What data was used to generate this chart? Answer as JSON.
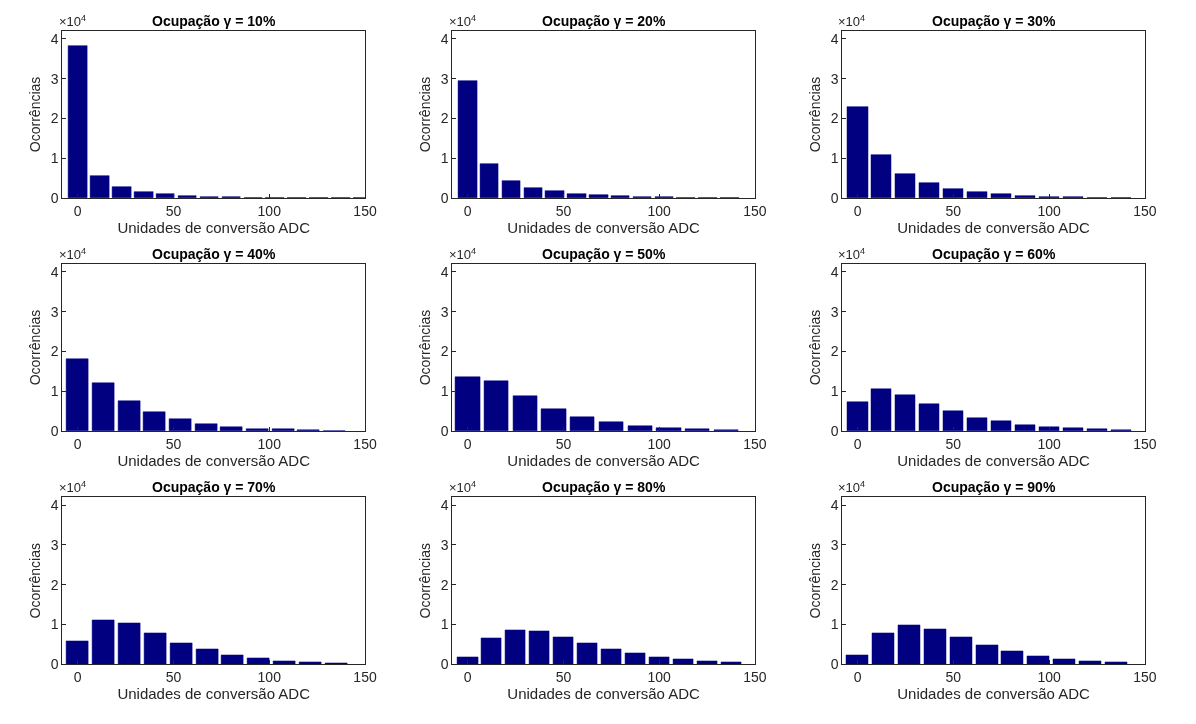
{
  "chart_data": [
    {
      "type": "bar",
      "title": "Ocupação γ = 10%",
      "xlabel": "Unidades de conversão ADC",
      "ylabel": "Ocorrências",
      "annotations": [
        "×10$^{4}$"
      ],
      "x": [
        0,
        11.5,
        23,
        34.4,
        45.8,
        57.3,
        68.7,
        80.2,
        91.6,
        103,
        114.5,
        126,
        137.4,
        148.9
      ],
      "values": [
        3.82,
        0.55,
        0.27,
        0.15,
        0.09,
        0.06,
        0.03,
        0.02,
        0.01,
        0.01,
        0.01,
        0.01,
        0.01,
        0.01
      ],
      "color": "#000080",
      "xlim": [
        -8,
        150
      ],
      "xticks": [
        0,
        50,
        100,
        150
      ],
      "ylim": [
        0,
        4.2
      ],
      "yticks": [
        0,
        1,
        2,
        3,
        4
      ]
    },
    {
      "type": "bar",
      "title": "Ocupação γ = 20%",
      "xlabel": "Unidades de conversão ADC",
      "ylabel": "Ocorrências",
      "annotations": [
        "×10$^{4}$"
      ],
      "x": [
        0,
        11.4,
        22.8,
        34.2,
        45.6,
        57,
        68.4,
        79.8,
        91.2,
        102.6,
        114,
        125.4,
        136.8
      ],
      "values": [
        2.95,
        0.85,
        0.43,
        0.26,
        0.17,
        0.11,
        0.07,
        0.05,
        0.03,
        0.02,
        0.01,
        0.01,
        0.01
      ],
      "color": "#000080",
      "xlim": [
        -8,
        150
      ],
      "xticks": [
        0,
        50,
        100,
        150
      ],
      "ylim": [
        0,
        4.2
      ],
      "yticks": [
        0,
        1,
        2,
        3,
        4
      ]
    },
    {
      "type": "bar",
      "title": "Ocupação γ = 30%",
      "xlabel": "Unidades de conversão ADC",
      "ylabel": "Ocorrências",
      "annotations": [
        "×10$^{4}$"
      ],
      "x": [
        0,
        12.5,
        25,
        37.5,
        50,
        62.5,
        75,
        87.5,
        100,
        112.5,
        125,
        137.5
      ],
      "values": [
        2.3,
        1.08,
        0.61,
        0.37,
        0.22,
        0.15,
        0.09,
        0.06,
        0.03,
        0.02,
        0.01,
        0.01
      ],
      "color": "#000080",
      "xlim": [
        -8,
        150
      ],
      "xticks": [
        0,
        50,
        100,
        150
      ],
      "ylim": [
        0,
        4.2
      ],
      "yticks": [
        0,
        1,
        2,
        3,
        4
      ]
    },
    {
      "type": "bar",
      "title": "Ocupação γ = 40%",
      "xlabel": "Unidades de conversão ADC",
      "ylabel": "Ocorrências",
      "annotations": [
        "×10$^{4}$"
      ],
      "x": [
        0,
        13.4,
        26.8,
        40.2,
        53.6,
        67,
        80.4,
        93.8,
        107.2,
        120.6,
        134
      ],
      "values": [
        1.8,
        1.2,
        0.75,
        0.47,
        0.3,
        0.18,
        0.1,
        0.06,
        0.04,
        0.02,
        0.01
      ],
      "color": "#000080",
      "xlim": [
        -8,
        150
      ],
      "xticks": [
        0,
        50,
        100,
        150
      ],
      "ylim": [
        0,
        4.2
      ],
      "yticks": [
        0,
        1,
        2,
        3,
        4
      ]
    },
    {
      "type": "bar",
      "title": "Ocupação γ = 50%",
      "xlabel": "Unidades de conversão ADC",
      "ylabel": "Ocorrências",
      "annotations": [
        "×10$^{4}$"
      ],
      "x": [
        0,
        15,
        30,
        45,
        60,
        75,
        90,
        105,
        120,
        135
      ],
      "values": [
        1.35,
        1.27,
        0.87,
        0.56,
        0.36,
        0.22,
        0.12,
        0.07,
        0.04,
        0.02
      ],
      "color": "#000080",
      "xlim": [
        -8,
        150
      ],
      "xticks": [
        0,
        50,
        100,
        150
      ],
      "ylim": [
        0,
        4.2
      ],
      "yticks": [
        0,
        1,
        2,
        3,
        4
      ]
    },
    {
      "type": "bar",
      "title": "Ocupação γ = 60%",
      "xlabel": "Unidades de conversão ADC",
      "ylabel": "Ocorrências",
      "annotations": [
        "×10$^{4}$"
      ],
      "x": [
        0,
        12.5,
        25,
        37.5,
        50,
        62.5,
        75,
        87.5,
        100,
        112.5,
        125,
        137.5
      ],
      "values": [
        0.72,
        1.06,
        0.9,
        0.68,
        0.5,
        0.34,
        0.25,
        0.16,
        0.1,
        0.07,
        0.04,
        0.02
      ],
      "color": "#000080",
      "xlim": [
        -8,
        150
      ],
      "xticks": [
        0,
        50,
        100,
        150
      ],
      "ylim": [
        0,
        4.2
      ],
      "yticks": [
        0,
        1,
        2,
        3,
        4
      ]
    },
    {
      "type": "bar",
      "title": "Ocupação γ = 70%",
      "xlabel": "Unidades de conversão ADC",
      "ylabel": "Ocorrências",
      "annotations": [
        "×10$^{4}$"
      ],
      "x": [
        0,
        13.5,
        27,
        40.5,
        54,
        67.5,
        81,
        94.5,
        108,
        121.5,
        135
      ],
      "values": [
        0.57,
        1.1,
        1.02,
        0.78,
        0.53,
        0.37,
        0.22,
        0.14,
        0.08,
        0.04,
        0.02
      ],
      "color": "#000080",
      "xlim": [
        -8,
        150
      ],
      "xticks": [
        0,
        50,
        100,
        150
      ],
      "ylim": [
        0,
        4.2
      ],
      "yticks": [
        0,
        1,
        2,
        3,
        4
      ]
    },
    {
      "type": "bar",
      "title": "Ocupação γ = 80%",
      "xlabel": "Unidades de conversão ADC",
      "ylabel": "Ocorrências",
      "annotations": [
        "×10$^{4}$"
      ],
      "x": [
        0,
        12.5,
        25,
        37.5,
        50,
        62.5,
        75,
        87.5,
        100,
        112.5,
        125,
        137.5
      ],
      "values": [
        0.18,
        0.66,
        0.85,
        0.84,
        0.68,
        0.52,
        0.37,
        0.27,
        0.18,
        0.12,
        0.07,
        0.04
      ],
      "color": "#000080",
      "xlim": [
        -8,
        150
      ],
      "xticks": [
        0,
        50,
        100,
        150
      ],
      "ylim": [
        0,
        4.2
      ],
      "yticks": [
        0,
        1,
        2,
        3,
        4
      ]
    },
    {
      "type": "bar",
      "title": "Ocupação γ = 90%",
      "xlabel": "Unidades de conversão ADC",
      "ylabel": "Ocorrências",
      "annotations": [
        "×10$^{4}$"
      ],
      "x": [
        0,
        13.5,
        27,
        40.5,
        54,
        67.5,
        81,
        94.5,
        108,
        121.5,
        135
      ],
      "values": [
        0.22,
        0.77,
        0.98,
        0.88,
        0.68,
        0.48,
        0.32,
        0.2,
        0.12,
        0.08,
        0.05
      ],
      "color": "#000080",
      "xlim": [
        -8,
        150
      ],
      "xticks": [
        0,
        50,
        100,
        150
      ],
      "ylim": [
        0,
        4.2
      ],
      "yticks": [
        0,
        1,
        2,
        3,
        4
      ]
    }
  ]
}
